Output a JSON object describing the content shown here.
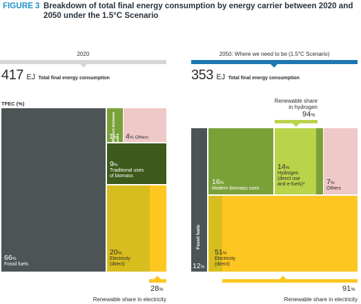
{
  "figure_label": "FIGURE 3",
  "figure_title": "Breakdown of total final energy consumption by energy carrier between 2020 and 2050 under the 1.5°C Scenario",
  "colors": {
    "fossil": "#4d5456",
    "biomass_modern": "#7aa138",
    "biomass_traditional": "#3d5a1c",
    "hydrogen": "#b9d34b",
    "others": "#efc8c8",
    "electricity": "#fec620",
    "electricity_dark": "#d8bd1e",
    "header_2020": "#d6d6d6",
    "header_2050": "#1d77b4",
    "renewable_bar": "#fec620"
  },
  "chart_data": [
    {
      "type": "treemap",
      "header": "2020",
      "total_value": "417",
      "total_unit": "EJ",
      "total_label": "Total final energy consumption",
      "axis_label": "TFEC (%)",
      "segments": [
        {
          "name": "Fossil fuels",
          "value": 66,
          "value_label": "66"
        },
        {
          "name": "Modern biomass uses",
          "value": 1,
          "value_label": "1"
        },
        {
          "name": "Others",
          "value": 4,
          "value_label": "4"
        },
        {
          "name": "Traditional uses of biomass",
          "value": 9,
          "value_label": "9"
        },
        {
          "name": "Electricity (direct)",
          "value": 20,
          "value_label": "20"
        }
      ],
      "renewable_share_electricity": {
        "value": 28,
        "label": "Renewable share in electricity"
      }
    },
    {
      "type": "treemap",
      "header": "2050: Where we need to be (1.5°C Scenario)",
      "total_value": "353",
      "total_unit": "EJ",
      "total_label": "Total final energy consumption",
      "segments": [
        {
          "name": "Fossil fuels",
          "value": 12,
          "value_label": "12"
        },
        {
          "name": "Modern biomass uses",
          "value": 16,
          "value_label": "16"
        },
        {
          "name": "Hydrogen (direct use and e-fuels)*",
          "value": 14,
          "value_label": "14"
        },
        {
          "name": "Others",
          "value": 7,
          "value_label": "7"
        },
        {
          "name": "Electricity (direct)",
          "value": 51,
          "value_label": "51"
        }
      ],
      "renewable_share_hydrogen": {
        "value": 94,
        "label": "Renewable share in hydrogen"
      },
      "renewable_share_electricity": {
        "value": 91,
        "label": "Renewable share in electricity"
      }
    }
  ],
  "text": {
    "pct_sign": "%",
    "fossil_name": "Fossil fuels",
    "modern_biomass_line1": "Modern",
    "modern_biomass_line2": "biomass",
    "modern_biomass_line3": "uses",
    "others": "Others",
    "trad_line1": "Traditional uses",
    "trad_line2": "of biomass",
    "elec_line1": "Electricity",
    "elec_line2": "(direct)",
    "modern_biomass_2050": "Modern biomass uses",
    "h2_line1": "Hydrogen",
    "h2_line2": "(direct use",
    "h2_line3": "and e-fuels)*",
    "ren_h2_line1": "Renewable share",
    "ren_h2_line2": "in hydrogen",
    "ren_elec": "Renewable share in electricity"
  }
}
